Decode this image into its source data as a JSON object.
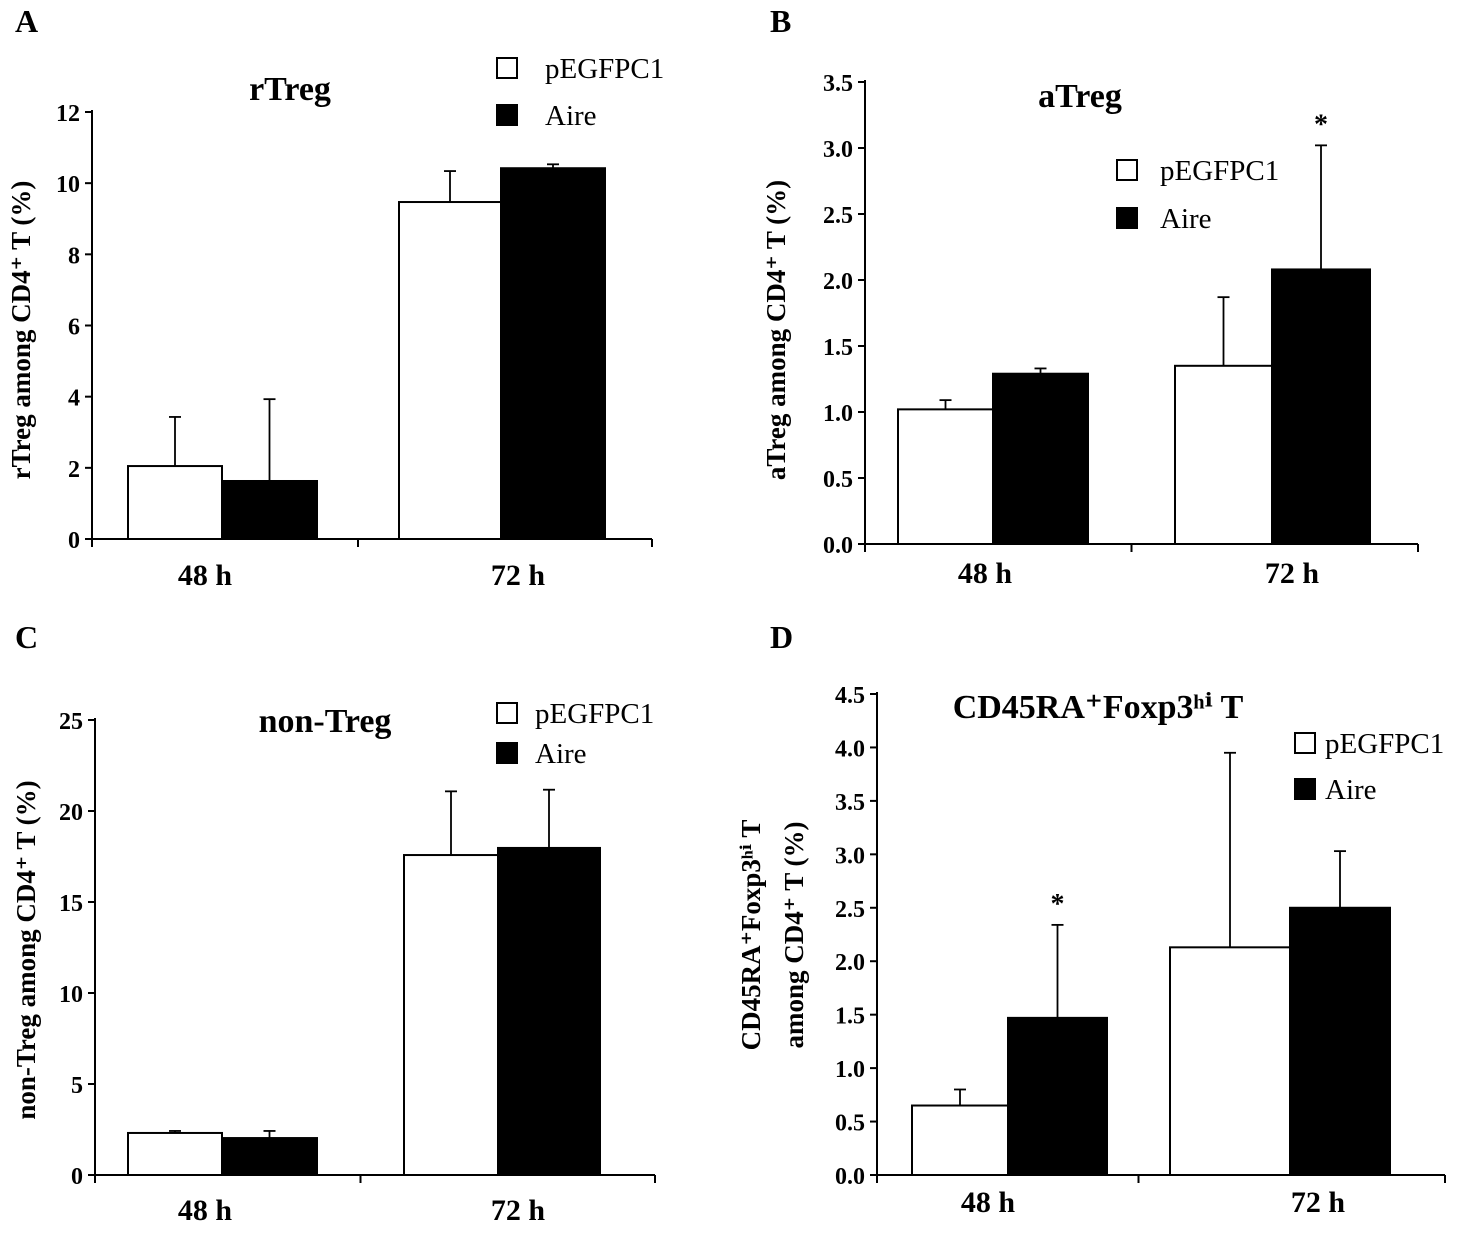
{
  "legend": {
    "series": [
      "pEGFPC1",
      "Aire"
    ],
    "colors": [
      "#ffffff",
      "#000000"
    ]
  },
  "chart_data": [
    {
      "panel": "A",
      "type": "bar",
      "title": "rTreg",
      "ylabel": "rTreg among CD4⁺ T  (%)",
      "xlabel": "",
      "categories": [
        "48 h",
        "72 h"
      ],
      "ylim": [
        0,
        12
      ],
      "yticks": [
        "0",
        "2",
        "4",
        "6",
        "8",
        "10",
        "12"
      ],
      "series": [
        {
          "name": "pEGFPC1",
          "values": [
            2.05,
            9.47
          ],
          "errors": [
            1.38,
            0.87
          ]
        },
        {
          "name": "Aire",
          "values": [
            1.63,
            10.42
          ],
          "errors": [
            2.3,
            0.11
          ]
        }
      ],
      "significance": [],
      "legend_position": "top-right",
      "grid": false
    },
    {
      "panel": "B",
      "type": "bar",
      "title": "aTreg",
      "ylabel": "aTreg among CD4⁺ T  (%)",
      "xlabel": "",
      "categories": [
        "48 h",
        "72 h"
      ],
      "ylim": [
        0,
        3.5
      ],
      "yticks": [
        "0.0",
        "0.5",
        "1.0",
        "1.5",
        "2.0",
        "2.5",
        "3.0",
        "3.5"
      ],
      "series": [
        {
          "name": "pEGFPC1",
          "values": [
            1.02,
            1.35
          ],
          "errors": [
            0.07,
            0.52
          ]
        },
        {
          "name": "Aire",
          "values": [
            1.29,
            2.08
          ],
          "errors": [
            0.04,
            0.94
          ]
        }
      ],
      "significance": [
        {
          "series": "Aire",
          "category": "72 h",
          "mark": "*"
        }
      ],
      "legend_position": "top-right",
      "grid": false
    },
    {
      "panel": "C",
      "type": "bar",
      "title": "non-Treg",
      "ylabel": "non-Treg among CD4⁺ T  (%)",
      "xlabel": "",
      "categories": [
        "48 h",
        "72 h"
      ],
      "ylim": [
        0,
        25
      ],
      "yticks": [
        "0",
        "5",
        "10",
        "15",
        "20",
        "25"
      ],
      "series": [
        {
          "name": "pEGFPC1",
          "values": [
            2.31,
            17.58
          ],
          "errors": [
            0.11,
            3.5
          ]
        },
        {
          "name": "Aire",
          "values": [
            2.03,
            17.97
          ],
          "errors": [
            0.39,
            3.2
          ]
        }
      ],
      "significance": [],
      "legend_position": "top-right",
      "grid": false
    },
    {
      "panel": "D",
      "type": "bar",
      "title": "CD45RA⁺Foxp3ʰⁱ T",
      "ylabel": "CD45RA⁺Foxp3ʰⁱ T",
      "ylabel2": "among CD4⁺ T  (%)",
      "xlabel": "",
      "categories": [
        "48 h",
        "72 h"
      ],
      "ylim": [
        0,
        4.5
      ],
      "yticks": [
        "0.0",
        "0.5",
        "1.0",
        "1.5",
        "2.0",
        "2.5",
        "3.0",
        "3.5",
        "4.0",
        "4.5"
      ],
      "series": [
        {
          "name": "pEGFPC1",
          "values": [
            0.65,
            2.13
          ],
          "errors": [
            0.15,
            1.82
          ]
        },
        {
          "name": "Aire",
          "values": [
            1.47,
            2.5
          ],
          "errors": [
            0.87,
            0.53
          ]
        }
      ],
      "significance": [
        {
          "series": "Aire",
          "category": "48 h",
          "mark": "*"
        }
      ],
      "legend_position": "top-right",
      "grid": false
    }
  ]
}
